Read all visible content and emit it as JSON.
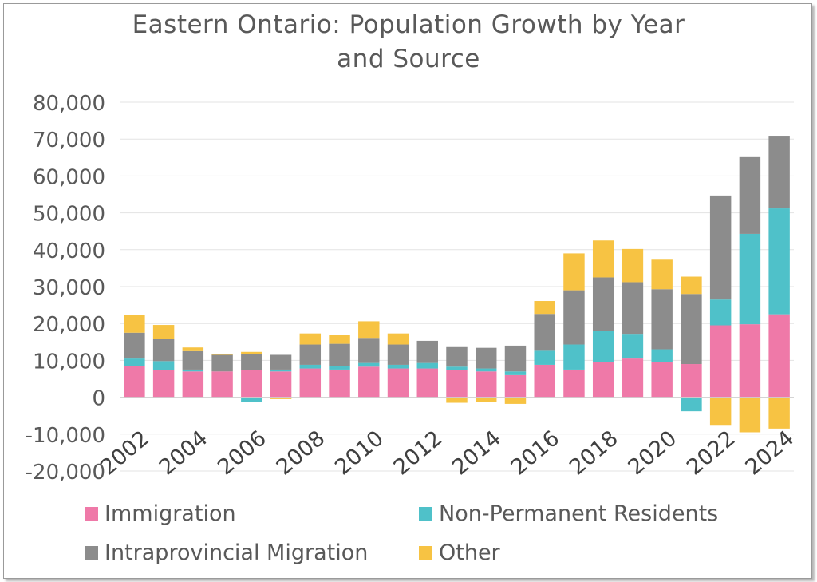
{
  "chart_data": {
    "type": "bar",
    "stacked": true,
    "title_line1": "Eastern Ontario: Population Growth by Year",
    "title_line2": "and Source",
    "categories": [
      "2002",
      "2003",
      "2004",
      "2005",
      "2006",
      "2007",
      "2008",
      "2009",
      "2010",
      "2011",
      "2012",
      "2013",
      "2014",
      "2015",
      "2016",
      "2017",
      "2018",
      "2019",
      "2020",
      "2021",
      "2022",
      "2023",
      "2024"
    ],
    "tick_labels": [
      "2002",
      "2004",
      "2006",
      "2008",
      "2010",
      "2012",
      "2014",
      "2016",
      "2018",
      "2020",
      "2022",
      "2024"
    ],
    "ylim": [
      -20000,
      80000
    ],
    "yticks": [
      -20000,
      -10000,
      0,
      10000,
      20000,
      30000,
      40000,
      50000,
      60000,
      70000,
      80000
    ],
    "ytick_labels": [
      "-20,000",
      "-10,000",
      "0",
      "10,000",
      "20,000",
      "30,000",
      "40,000",
      "50,000",
      "60,000",
      "70,000",
      "80,000"
    ],
    "grid": true,
    "legend_position": "bottom",
    "series": [
      {
        "name": "Immigration",
        "color": "#ef79a8",
        "values": [
          8500,
          7300,
          7000,
          7000,
          7300,
          7000,
          7800,
          7500,
          8300,
          7800,
          7800,
          7300,
          7000,
          6000,
          8800,
          7500,
          9500,
          10500,
          9500,
          9000,
          19500,
          19800,
          22500
        ]
      },
      {
        "name": "Non-Permanent Residents",
        "color": "#4fc1c9",
        "values": [
          2000,
          2500,
          500,
          0,
          -1200,
          500,
          1000,
          1000,
          1000,
          1000,
          1500,
          1000,
          800,
          1000,
          3800,
          6800,
          8500,
          6700,
          3500,
          -3800,
          7000,
          24500,
          28700
        ]
      },
      {
        "name": "Intraprovincial Migration",
        "color": "#8c8c8c",
        "values": [
          7000,
          6000,
          5000,
          4500,
          4500,
          4000,
          5500,
          6000,
          6800,
          5500,
          6000,
          5300,
          5600,
          7000,
          10000,
          14700,
          14500,
          14000,
          16300,
          19000,
          28200,
          20800,
          19700
        ]
      },
      {
        "name": "Other",
        "color": "#f7c343",
        "values": [
          4800,
          3800,
          1000,
          300,
          500,
          -500,
          3000,
          2500,
          4500,
          3000,
          0,
          -1500,
          -1200,
          -1800,
          3500,
          10000,
          10000,
          9000,
          8000,
          4700,
          -7500,
          -9500,
          -8500
        ]
      }
    ]
  }
}
